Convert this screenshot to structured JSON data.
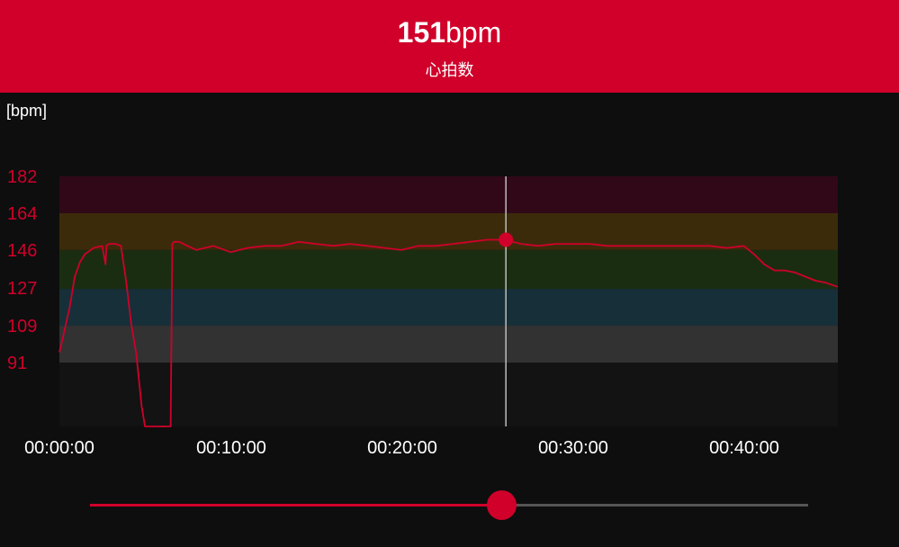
{
  "header": {
    "value": "151",
    "unit": "bpm",
    "label": "心拍数"
  },
  "colors": {
    "accent": "#d0002a",
    "zone5": "#310818",
    "zone4": "#3c2b0b",
    "zone3": "#1b2d10",
    "zone2": "#172f38",
    "zone1": "#323232",
    "zone0": "#131313",
    "line": "#d0002a"
  },
  "chart_data": {
    "type": "line",
    "ylabel": "[bpm]",
    "y_ticks": [
      "182",
      "164",
      "146",
      "127",
      "109",
      "91"
    ],
    "x_ticks": [
      "00:00:00",
      "00:10:00",
      "00:20:00",
      "00:30:00",
      "00:40:00"
    ],
    "xlim_min": [
      0,
      45.5
    ],
    "ylim": [
      55,
      182
    ],
    "zones": [
      {
        "from": 164,
        "to": 182,
        "color": "zone5"
      },
      {
        "from": 146,
        "to": 164,
        "color": "zone4"
      },
      {
        "from": 127,
        "to": 146,
        "color": "zone3"
      },
      {
        "from": 109,
        "to": 127,
        "color": "zone2"
      },
      {
        "from": 91,
        "to": 109,
        "color": "zone1"
      },
      {
        "from": 55,
        "to": 91,
        "color": "zone0"
      }
    ],
    "series": [
      {
        "x_min": [
          0,
          0.2,
          0.6,
          0.9,
          1.2,
          1.5,
          2.0,
          2.5,
          2.7,
          2.75,
          2.9,
          3.3,
          3.6,
          3.9,
          4.2,
          4.5,
          4.8,
          5.0,
          5.1,
          5.2,
          6.5,
          6.6,
          6.7,
          7.0,
          8.0,
          9.0,
          10.0,
          11.0,
          12.0,
          13.0,
          14.0,
          15.0,
          16.0,
          17.0,
          18.0,
          19.0,
          20.0,
          21.0,
          22.0,
          23.0,
          24.0,
          25.0,
          26.0,
          27.0,
          28.0,
          29.0,
          30.0,
          31.0,
          32.0,
          33.0,
          34.0,
          35.0,
          36.0,
          37.0,
          38.0,
          39.0,
          40.0,
          40.6,
          41.2,
          41.8,
          42.4,
          43.0,
          43.6,
          44.2,
          44.8,
          45.5
        ],
        "bpm": [
          96,
          103,
          118,
          133,
          140,
          144,
          147,
          148,
          139,
          148,
          149,
          149,
          148,
          131,
          110,
          95,
          70,
          59,
          57,
          55,
          55,
          149,
          150,
          150,
          146,
          148,
          145,
          147,
          148,
          148,
          150,
          149,
          148,
          149,
          148,
          147,
          146,
          148,
          148,
          149,
          150,
          151,
          151,
          149,
          148,
          149,
          149,
          149,
          148,
          148,
          148,
          148,
          148,
          148,
          148,
          147,
          148,
          144,
          139,
          136,
          136,
          135,
          133,
          131,
          130,
          128
        ]
      }
    ],
    "cursor_min": 26.1,
    "cursor_bpm": 151
  },
  "slider": {
    "value_fraction": 0.573
  }
}
